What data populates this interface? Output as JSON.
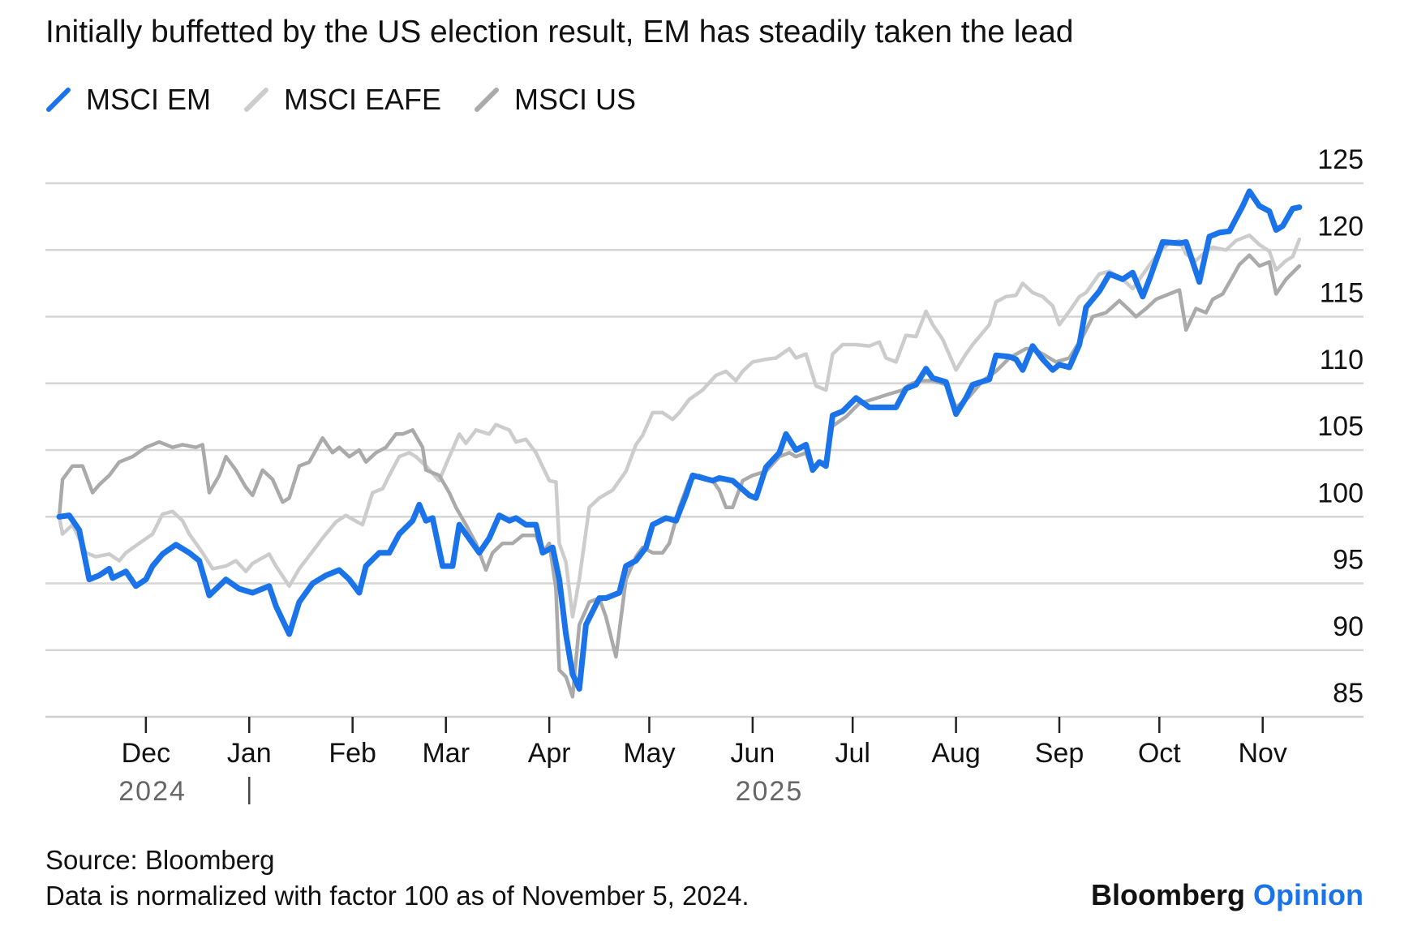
{
  "chart_data": {
    "type": "line",
    "title": "Initially buffetted by the US election result, EM has steadily taken the lead",
    "xlabel": "",
    "ylabel": "",
    "x_unit": "days since November 5, 2024",
    "ylim": [
      85,
      125
    ],
    "yticks": [
      85,
      90,
      95,
      100,
      105,
      110,
      115,
      120,
      125
    ],
    "ytick_labels": [
      "85",
      "90",
      "95",
      "100",
      "105",
      "110",
      "115",
      "120",
      "125"
    ],
    "xticks": [
      {
        "day": 26,
        "label": "Dec"
      },
      {
        "day": 57,
        "label": "Jan"
      },
      {
        "day": 88,
        "label": "Feb"
      },
      {
        "day": 116,
        "label": "Mar"
      },
      {
        "day": 147,
        "label": "Apr"
      },
      {
        "day": 177,
        "label": "May"
      },
      {
        "day": 208,
        "label": "Jun"
      },
      {
        "day": 238,
        "label": "Jul"
      },
      {
        "day": 269,
        "label": "Aug"
      },
      {
        "day": 300,
        "label": "Sep"
      },
      {
        "day": 330,
        "label": "Oct"
      },
      {
        "day": 361,
        "label": "Nov"
      }
    ],
    "years": [
      {
        "day": 28,
        "label": "2024"
      },
      {
        "day": 213,
        "label": "2025"
      }
    ],
    "year_divider_day": 57,
    "grid": true,
    "legend_position": "top-left",
    "series": [
      {
        "name": "MSCI EAFE",
        "color": "#cccccc",
        "x": [
          0,
          1,
          4,
          8,
          11,
          15,
          18,
          20,
          24,
          28,
          31,
          34,
          37,
          39,
          43,
          46,
          50,
          53,
          56,
          58,
          63,
          65,
          69,
          72,
          76,
          79,
          83,
          86,
          88,
          91,
          94,
          97,
          99,
          102,
          105,
          107,
          110,
          114,
          117,
          120,
          122,
          125,
          129,
          131,
          135,
          137,
          140,
          143,
          147,
          149,
          150,
          152,
          154,
          156,
          159,
          162,
          166,
          170,
          173,
          175,
          178,
          181,
          184,
          186,
          189,
          193,
          197,
          200,
          203,
          205,
          208,
          212,
          215,
          219,
          221,
          224,
          227,
          230,
          232,
          235,
          239,
          243,
          246,
          248,
          251,
          254,
          257,
          260,
          262,
          265,
          269,
          272,
          274,
          279,
          281,
          284,
          287,
          289,
          292,
          295,
          298,
          300,
          303,
          306,
          308,
          312,
          315,
          319,
          322,
          326,
          330,
          333,
          336,
          338,
          341,
          344,
          346,
          350,
          353,
          357,
          360,
          363,
          365,
          368,
          370,
          372
        ],
        "y": [
          100,
          98.7,
          99.4,
          97.3,
          97.0,
          97.2,
          96.7,
          97.3,
          98.0,
          98.7,
          100.2,
          100.4,
          99.7,
          98.7,
          97.3,
          96.1,
          96.3,
          96.7,
          95.9,
          96.5,
          97.2,
          96.3,
          94.8,
          96.1,
          97.4,
          98.4,
          99.6,
          100.1,
          99.8,
          99.4,
          101.8,
          102.1,
          103.1,
          104.5,
          104.8,
          104.5,
          103.8,
          102.7,
          104.5,
          106.2,
          105.5,
          106.5,
          106.2,
          106.9,
          106.5,
          105.6,
          105.8,
          104.8,
          102.7,
          102.6,
          98.0,
          96.6,
          92.5,
          95.3,
          100.7,
          101.4,
          102.0,
          103.4,
          105.4,
          106.1,
          107.8,
          107.8,
          107.3,
          107.8,
          108.8,
          109.5,
          110.6,
          110.9,
          110.2,
          110.9,
          111.6,
          111.8,
          111.9,
          112.6,
          111.9,
          112.2,
          109.8,
          109.5,
          112.2,
          112.9,
          112.9,
          112.8,
          113.1,
          111.9,
          111.6,
          113.6,
          113.5,
          115.4,
          114.4,
          113.3,
          111.0,
          112.2,
          112.9,
          114.4,
          116.1,
          116.5,
          116.6,
          117.5,
          116.8,
          116.5,
          115.8,
          114.4,
          115.4,
          116.5,
          116.8,
          118.2,
          118.4,
          117.8,
          117.1,
          118.5,
          119.9,
          120.5,
          120.7,
          119.7,
          119.2,
          119.9,
          120.2,
          120.0,
          120.7,
          121.1,
          120.4,
          119.9,
          118.5,
          119.2,
          119.5,
          120.8
        ]
      },
      {
        "name": "MSCI US",
        "color": "#aaaaaa",
        "x": [
          0,
          1,
          4,
          7,
          10,
          12,
          15,
          18,
          22,
          26,
          30,
          34,
          37,
          41,
          43,
          45,
          48,
          50,
          53,
          56,
          58,
          61,
          64,
          67,
          69,
          72,
          75,
          79,
          82,
          84,
          87,
          90,
          92,
          95,
          98,
          101,
          103,
          106,
          109,
          110,
          114,
          117,
          119,
          122,
          125,
          128,
          130,
          133,
          136,
          139,
          143,
          145,
          147,
          149,
          150,
          152,
          154,
          156,
          159,
          162,
          164,
          167,
          170,
          173,
          175,
          178,
          181,
          183,
          186,
          189,
          192,
          196,
          198,
          200,
          202,
          205,
          208,
          212,
          216,
          219,
          221,
          224,
          226,
          228,
          230,
          232,
          236,
          240,
          244,
          249,
          253,
          255,
          258,
          262,
          266,
          269,
          273,
          277,
          281,
          285,
          290,
          292,
          295,
          299,
          303,
          307,
          310,
          314,
          318,
          321,
          323,
          326,
          329,
          333,
          336,
          338,
          341,
          344,
          346,
          349,
          352,
          354,
          357,
          360,
          363,
          365,
          368,
          372
        ],
        "y": [
          100,
          102.8,
          103.8,
          103.8,
          101.8,
          102.4,
          103.1,
          104.1,
          104.5,
          105.2,
          105.6,
          105.2,
          105.4,
          105.2,
          105.4,
          101.8,
          103.1,
          104.5,
          103.5,
          102.2,
          101.6,
          103.5,
          102.8,
          101.1,
          101.4,
          103.8,
          104.1,
          105.9,
          104.8,
          105.2,
          104.5,
          105.0,
          104.1,
          104.8,
          105.2,
          106.2,
          106.2,
          106.5,
          105.2,
          103.5,
          103.1,
          101.8,
          100.7,
          99.4,
          98.0,
          96.0,
          97.3,
          98.0,
          98.0,
          98.6,
          98.6,
          97.3,
          98.0,
          94.6,
          88.5,
          88.0,
          86.5,
          91.9,
          93.6,
          93.9,
          92.5,
          89.5,
          95.3,
          97.0,
          97.7,
          97.3,
          97.3,
          98.0,
          100.7,
          102.7,
          103.1,
          102.7,
          102.0,
          100.7,
          100.7,
          102.7,
          103.1,
          103.4,
          104.5,
          104.8,
          104.5,
          104.8,
          103.5,
          104.1,
          104.1,
          106.8,
          107.5,
          108.5,
          108.8,
          109.2,
          109.5,
          109.9,
          110.2,
          110.2,
          109.9,
          108.2,
          109.0,
          110.2,
          110.9,
          111.9,
          112.6,
          112.6,
          112.2,
          111.6,
          111.9,
          113.5,
          115.0,
          115.3,
          116.2,
          115.5,
          115.0,
          115.6,
          116.3,
          116.7,
          117.0,
          114.0,
          115.6,
          115.3,
          116.3,
          116.7,
          118.0,
          118.9,
          119.6,
          118.8,
          119.1,
          116.7,
          117.8,
          118.8
        ]
      },
      {
        "name": "MSCI EM",
        "color": "#1a73e8",
        "x": [
          0,
          3,
          6,
          9,
          12,
          15,
          16,
          20,
          23,
          26,
          28,
          31,
          35,
          39,
          42,
          45,
          50,
          54,
          58,
          63,
          65,
          69,
          72,
          76,
          80,
          84,
          87,
          90,
          92,
          96,
          99,
          102,
          106,
          108,
          110,
          112,
          115,
          118,
          120,
          124,
          126,
          129,
          132,
          135,
          137,
          140,
          143,
          145,
          148,
          150,
          152,
          154,
          156,
          158,
          162,
          164,
          168,
          170,
          173,
          176,
          178,
          182,
          185,
          188,
          190,
          193,
          196,
          198,
          202,
          207,
          209,
          212,
          216,
          218,
          221,
          224,
          226,
          228,
          230,
          232,
          235,
          239,
          243,
          247,
          251,
          254,
          257,
          260,
          262,
          266,
          269,
          272,
          274,
          279,
          281,
          285,
          287,
          289,
          292,
          295,
          298,
          300,
          303,
          306,
          308,
          312,
          315,
          319,
          322,
          325,
          327,
          331,
          336,
          338,
          342,
          345,
          348,
          351,
          355,
          357,
          360,
          363,
          365,
          367,
          370,
          372
        ],
        "y": [
          100.0,
          100.1,
          99.0,
          95.3,
          95.6,
          96.1,
          95.4,
          95.9,
          94.8,
          95.3,
          96.3,
          97.2,
          97.9,
          97.3,
          96.7,
          94.1,
          95.3,
          94.6,
          94.3,
          94.8,
          93.3,
          91.2,
          93.6,
          95.0,
          95.6,
          96.0,
          95.3,
          94.3,
          96.3,
          97.3,
          97.3,
          98.7,
          99.7,
          100.9,
          99.7,
          99.9,
          96.3,
          96.3,
          99.4,
          98.0,
          97.3,
          98.4,
          100.1,
          99.7,
          99.9,
          99.4,
          99.4,
          97.3,
          97.7,
          95.3,
          91.2,
          88.2,
          87.1,
          91.9,
          93.9,
          93.9,
          94.3,
          96.3,
          96.7,
          97.7,
          99.4,
          99.9,
          99.7,
          101.6,
          103.1,
          102.9,
          102.7,
          102.9,
          102.7,
          101.6,
          101.4,
          103.7,
          104.8,
          106.2,
          105.0,
          105.4,
          103.5,
          104.1,
          103.8,
          107.6,
          107.9,
          108.9,
          108.2,
          108.2,
          108.2,
          109.6,
          109.9,
          111.1,
          110.4,
          110.1,
          107.7,
          108.9,
          109.9,
          110.3,
          112.1,
          112.0,
          111.8,
          111.0,
          112.8,
          111.8,
          111.0,
          111.4,
          111.2,
          112.9,
          115.7,
          116.9,
          118.2,
          117.8,
          118.3,
          116.5,
          117.8,
          120.6,
          120.5,
          120.6,
          117.6,
          121.0,
          121.3,
          121.4,
          123.3,
          124.4,
          123.3,
          122.9,
          121.5,
          121.8,
          123.1,
          123.2
        ]
      }
    ]
  },
  "legend": [
    {
      "label": "MSCI EM",
      "color": "#1a73e8"
    },
    {
      "label": "MSCI EAFE",
      "color": "#cccccc"
    },
    {
      "label": "MSCI US",
      "color": "#aaaaaa"
    }
  ],
  "footer": {
    "source": "Source: Bloomberg",
    "note": "Data is normalized with factor 100 as of November 5, 2024.",
    "brand_main": "Bloomberg",
    "brand_accent": "Opinion"
  }
}
